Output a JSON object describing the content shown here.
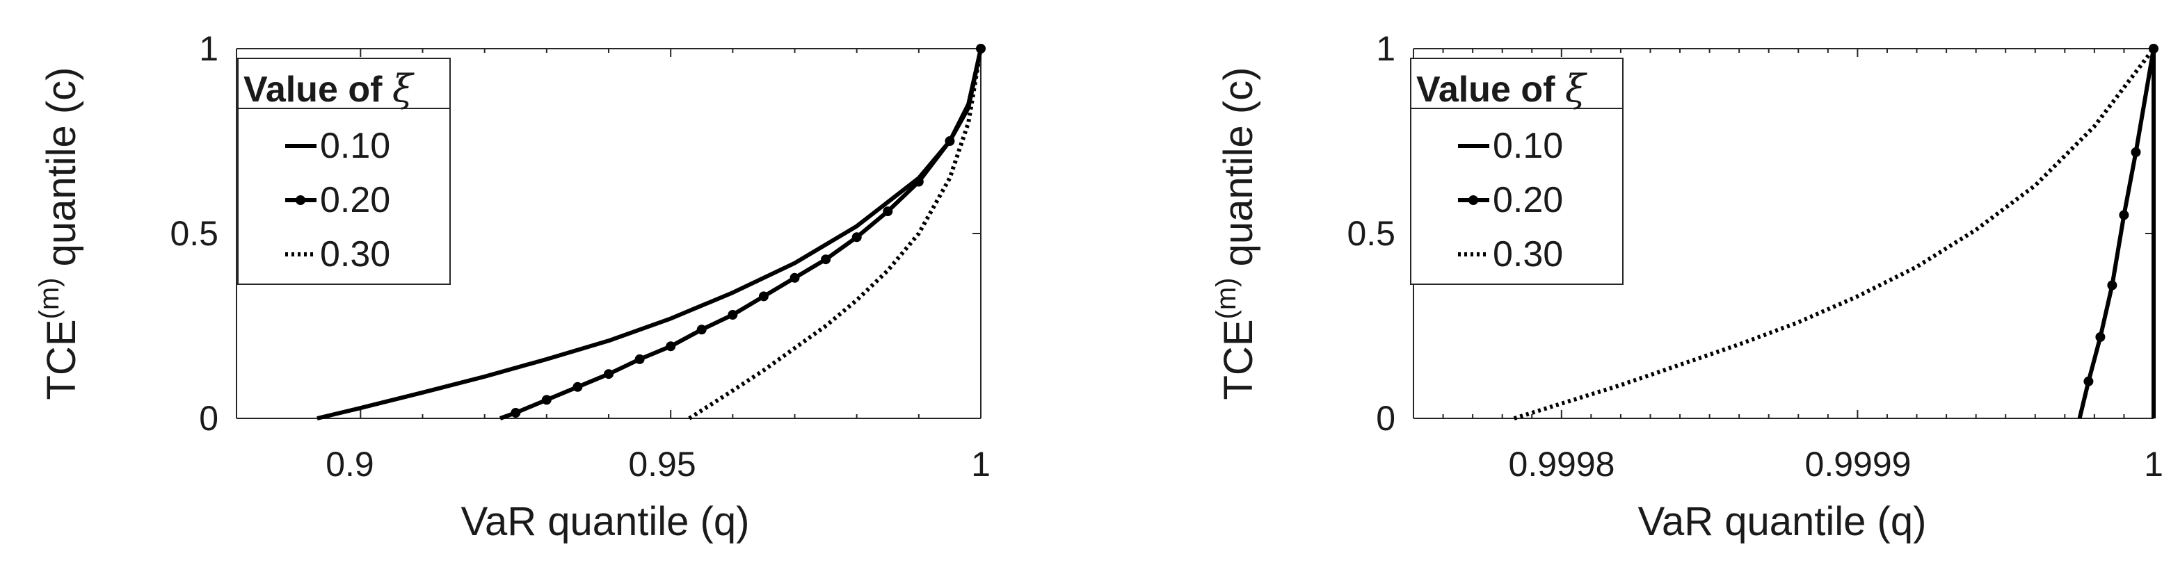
{
  "chart_data": [
    {
      "type": "line",
      "xlabel": "VaR quantile (q)",
      "ylabel_main": "TCE",
      "ylabel_sup": "(m)",
      "ylabel_rest": " quantile (c)",
      "xlim": [
        0.88,
        1.0
      ],
      "ylim": [
        0,
        1
      ],
      "xticks": [
        0.9,
        0.95,
        1.0
      ],
      "xtick_labels": [
        "0.9",
        "0.95",
        "1"
      ],
      "yticks": [
        0,
        0.5,
        1
      ],
      "ytick_labels": [
        "0",
        "0.5",
        "1"
      ],
      "grid": false,
      "legend": {
        "title": "Value of",
        "title_symbol": "ξ",
        "placement": "top-left",
        "entries": [
          "0.10",
          "0.20",
          "0.30"
        ]
      },
      "series": [
        {
          "name": "0.10",
          "style": "solid",
          "x": [
            0.893,
            0.9,
            0.91,
            0.92,
            0.93,
            0.94,
            0.95,
            0.96,
            0.97,
            0.98,
            0.99,
            0.995,
            0.998,
            1.0
          ],
          "y": [
            0.0,
            0.028,
            0.07,
            0.113,
            0.16,
            0.21,
            0.27,
            0.34,
            0.42,
            0.52,
            0.65,
            0.75,
            0.84,
            1.0
          ]
        },
        {
          "name": "0.20",
          "style": "solid-markers",
          "x": [
            0.9225,
            0.925,
            0.93,
            0.935,
            0.94,
            0.945,
            0.95,
            0.955,
            0.96,
            0.965,
            0.97,
            0.975,
            0.98,
            0.985,
            0.99,
            0.995,
            0.998,
            1.0
          ],
          "y": [
            0.0,
            0.015,
            0.05,
            0.085,
            0.12,
            0.16,
            0.195,
            0.24,
            0.28,
            0.33,
            0.38,
            0.43,
            0.49,
            0.56,
            0.64,
            0.75,
            0.85,
            1.0
          ],
          "markers_x": [
            0.925,
            0.93,
            0.935,
            0.94,
            0.945,
            0.95,
            0.955,
            0.96,
            0.965,
            0.97,
            0.975,
            0.98,
            0.985,
            0.99,
            0.995,
            1.0
          ]
        },
        {
          "name": "0.30",
          "style": "dotted",
          "x": [
            0.953,
            0.96,
            0.965,
            0.97,
            0.975,
            0.98,
            0.985,
            0.99,
            0.995,
            0.998,
            1.0
          ],
          "y": [
            0.0,
            0.075,
            0.13,
            0.19,
            0.25,
            0.32,
            0.4,
            0.5,
            0.65,
            0.8,
            1.0
          ]
        }
      ]
    },
    {
      "type": "line",
      "xlabel": "VaR quantile (q)",
      "ylabel_main": "TCE",
      "ylabel_sup": "(m)",
      "ylabel_rest": " quantile (c)",
      "xlim": [
        0.99975,
        1.0
      ],
      "ylim": [
        0,
        1
      ],
      "xticks": [
        0.9998,
        0.9999,
        1.0
      ],
      "xtick_labels": [
        "0.9998",
        "0.9999",
        "1"
      ],
      "yticks": [
        0,
        0.5,
        1
      ],
      "ytick_labels": [
        "0",
        "0.5",
        "1"
      ],
      "grid": false,
      "legend": {
        "title": "Value of",
        "title_symbol": "ξ",
        "placement": "top-left",
        "entries": [
          "0.10",
          "0.20",
          "0.30"
        ]
      },
      "series": [
        {
          "name": "0.10",
          "style": "solid",
          "x": [
            1.0,
            1.0
          ],
          "y": [
            0.0,
            1.0
          ]
        },
        {
          "name": "0.20",
          "style": "solid-markers",
          "x": [
            0.999975,
            0.999978,
            0.999982,
            0.999986,
            0.99999,
            0.999994,
            1.0
          ],
          "y": [
            0.0,
            0.1,
            0.22,
            0.36,
            0.55,
            0.72,
            1.0
          ],
          "markers_x": [
            0.999978,
            0.999982,
            0.999986,
            0.99999,
            0.999994,
            1.0
          ]
        },
        {
          "name": "0.30",
          "style": "dotted",
          "x": [
            0.999784,
            0.9998,
            0.99982,
            0.99984,
            0.99986,
            0.99988,
            0.9999,
            0.99992,
            0.99994,
            0.99996,
            0.99998,
            1.0
          ],
          "y": [
            0.0,
            0.04,
            0.09,
            0.145,
            0.2,
            0.26,
            0.33,
            0.41,
            0.51,
            0.63,
            0.79,
            1.0
          ]
        }
      ]
    }
  ]
}
